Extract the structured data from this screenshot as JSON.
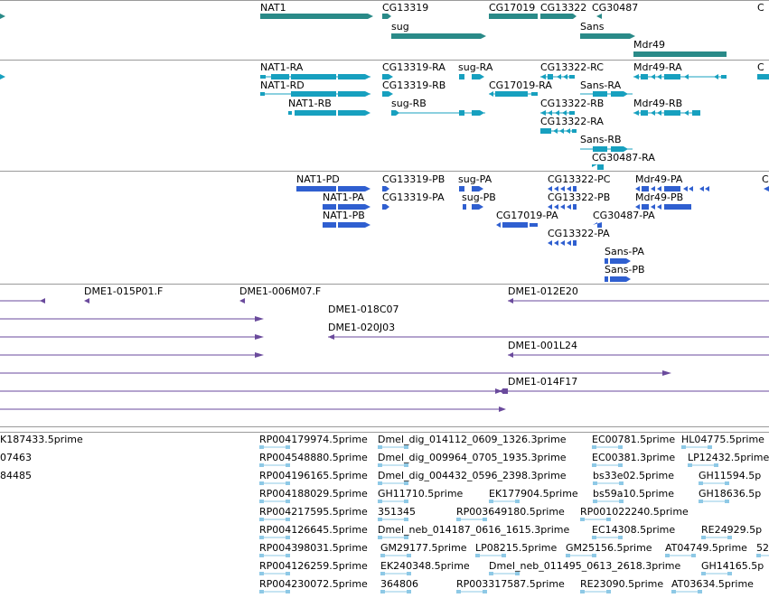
{
  "colors": {
    "gene": "#2a8a88",
    "transcript": "#17a0bf",
    "protein": "#2f5fd0",
    "clone": "#6a4a9c",
    "est": "#8ec9e6",
    "divider": "#9a9a9a"
  },
  "tracks": {
    "genes": {
      "labels": [
        "NAT1",
        "CG13319",
        "CG17019",
        "CG13322",
        "CG30487",
        "C",
        "sug",
        "Sans",
        "Mdr49"
      ]
    },
    "transcripts": {
      "labels": [
        "NAT1-RA",
        "CG13319-RA",
        "sug-RA",
        "CG13322-RC",
        "Mdr49-RA",
        "C",
        "NAT1-RD",
        "CG13319-RB",
        "CG17019-RA",
        "Sans-RA",
        "NAT1-RB",
        "sug-RB",
        "CG13322-RB",
        "Mdr49-RB",
        "CG13322-RA",
        "Sans-RB",
        "CG30487-RA"
      ]
    },
    "proteins": {
      "labels": [
        "NAT1-PD",
        "CG13319-PB",
        "sug-PA",
        "CG13322-PC",
        "Mdr49-PA",
        "C",
        "NAT1-PA",
        "CG13319-PA",
        "sug-PB",
        "CG13322-PB",
        "Mdr49-PB",
        "NAT1-PB",
        "CG17019-PA",
        "CG30487-PA",
        "CG13322-PA",
        "Sans-PA",
        "Sans-PB"
      ]
    },
    "clones": {
      "labels": [
        "DME1-015P01.F",
        "DME1-006M07.F",
        "DME1-012E20",
        "DME1-018C07",
        "DME1-020J03",
        "DME1-001L24",
        "DME1-014F17"
      ]
    },
    "ests": {
      "labels": [
        "K187433.5prime",
        "RP004179974.5prime",
        "Dmel_dig_014112_0609_1326.3prime",
        "EC00781.5prime",
        "HL04775.5prime",
        "07463",
        "RP004548880.5prime",
        "Dmel_dig_009964_0705_1935.3prime",
        "EC00381.3prime",
        "LP12432.5prime",
        "84485",
        "RP004196165.5prime",
        "Dmel_dig_004432_0596_2398.3prime",
        "bs33e02.5prime",
        "GH11594.5p",
        "RP004188029.5prime",
        "GH11710.5prime",
        "EK177904.5prime",
        "bs59a10.5prime",
        "GH18636.5p",
        "RP004217595.5prime",
        "351345",
        "RP003649180.5prime",
        "RP001022240.5prime",
        "RP004126645.5prime",
        "Dmel_neb_014187_0616_1615.3prime",
        "EC14308.5prime",
        "RE24929.5p",
        "RP004398031.5prime",
        "GM29177.5prime",
        "LP08215.5prime",
        "GM25156.5prime",
        "AT04749.5prime",
        "52",
        "RP004126259.5prime",
        "EK240348.5prime",
        "Dmel_neb_011495_0613_2618.3prime",
        "GH14165.5p",
        "RP004230072.5prime",
        "364806",
        "RP003317587.5prime",
        "RE23090.5prime",
        "AT03634.5prime"
      ]
    }
  }
}
